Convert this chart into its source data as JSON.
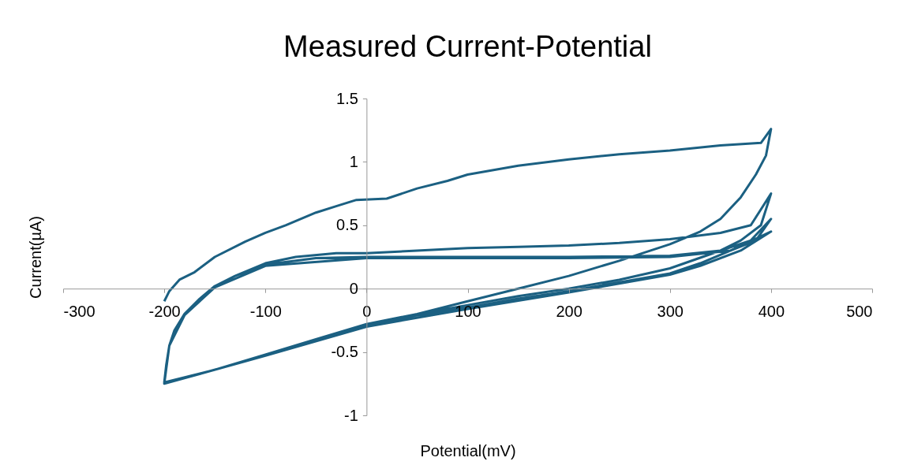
{
  "chart_data": {
    "type": "line",
    "title": "Measured Current-Potential",
    "xlabel": "Potential(mV)",
    "ylabel": "Current(µA)",
    "xlim": [
      -300,
      500
    ],
    "xticks": [
      -300,
      -200,
      -100,
      0,
      100,
      200,
      300,
      400,
      500
    ],
    "ylim": [
      -1,
      1.5
    ],
    "yticks": [
      -1,
      -0.5,
      0,
      0.5,
      1,
      1.5
    ],
    "grid": false,
    "marker": "none",
    "line_style": "solid",
    "series": [
      {
        "color": "#1b6082",
        "x": [
          -200,
          -195,
          -185,
          -170,
          -150,
          -120,
          -100,
          -80,
          -50,
          -30,
          -10,
          20,
          50,
          80,
          100,
          150,
          200,
          250,
          300,
          350,
          390,
          400,
          395,
          385,
          370,
          350,
          330,
          300,
          250,
          200,
          150,
          100,
          50,
          0,
          -50,
          -100,
          -150,
          -200,
          -198,
          -195,
          -190,
          -180,
          -165,
          -150,
          -130,
          -100,
          -70,
          -30,
          0,
          50,
          100,
          150,
          200,
          250,
          300,
          350,
          380,
          400,
          390,
          370,
          350,
          300,
          250,
          200,
          150,
          100,
          50,
          0,
          -50,
          -100,
          -150,
          -200,
          -198,
          -195,
          -190,
          -180,
          -165,
          -150,
          -130,
          -100,
          -50,
          0,
          100,
          200,
          300,
          350,
          380,
          400,
          385,
          360,
          330,
          300,
          250,
          200,
          150,
          100,
          50,
          0,
          -100,
          -200,
          -195,
          -180,
          -150,
          -100,
          0,
          200,
          300,
          360,
          400,
          370,
          330,
          300,
          200,
          100,
          0,
          -100,
          -200
        ],
        "values": [
          -0.1,
          -0.02,
          0.07,
          0.13,
          0.25,
          0.37,
          0.44,
          0.5,
          0.6,
          0.65,
          0.7,
          0.71,
          0.79,
          0.85,
          0.9,
          0.97,
          1.02,
          1.06,
          1.09,
          1.13,
          1.15,
          1.26,
          1.05,
          0.9,
          0.72,
          0.55,
          0.45,
          0.35,
          0.22,
          0.1,
          0.0,
          -0.1,
          -0.2,
          -0.28,
          -0.4,
          -0.52,
          -0.64,
          -0.75,
          -0.6,
          -0.45,
          -0.33,
          -0.2,
          -0.08,
          0.02,
          0.1,
          0.2,
          0.25,
          0.28,
          0.28,
          0.3,
          0.32,
          0.33,
          0.34,
          0.36,
          0.39,
          0.44,
          0.5,
          0.75,
          0.5,
          0.38,
          0.3,
          0.16,
          0.07,
          0.0,
          -0.06,
          -0.13,
          -0.2,
          -0.28,
          -0.4,
          -0.52,
          -0.64,
          -0.74,
          -0.6,
          -0.45,
          -0.33,
          -0.2,
          -0.08,
          0.02,
          0.1,
          0.19,
          0.24,
          0.25,
          0.25,
          0.25,
          0.26,
          0.3,
          0.38,
          0.55,
          0.38,
          0.3,
          0.2,
          0.12,
          0.05,
          -0.02,
          -0.08,
          -0.15,
          -0.21,
          -0.29,
          -0.53,
          -0.75,
          -0.45,
          -0.21,
          0.01,
          0.18,
          0.24,
          0.24,
          0.25,
          0.3,
          0.45,
          0.3,
          0.18,
          0.11,
          -0.03,
          -0.16,
          -0.3,
          -0.53,
          -0.75
        ]
      }
    ]
  }
}
